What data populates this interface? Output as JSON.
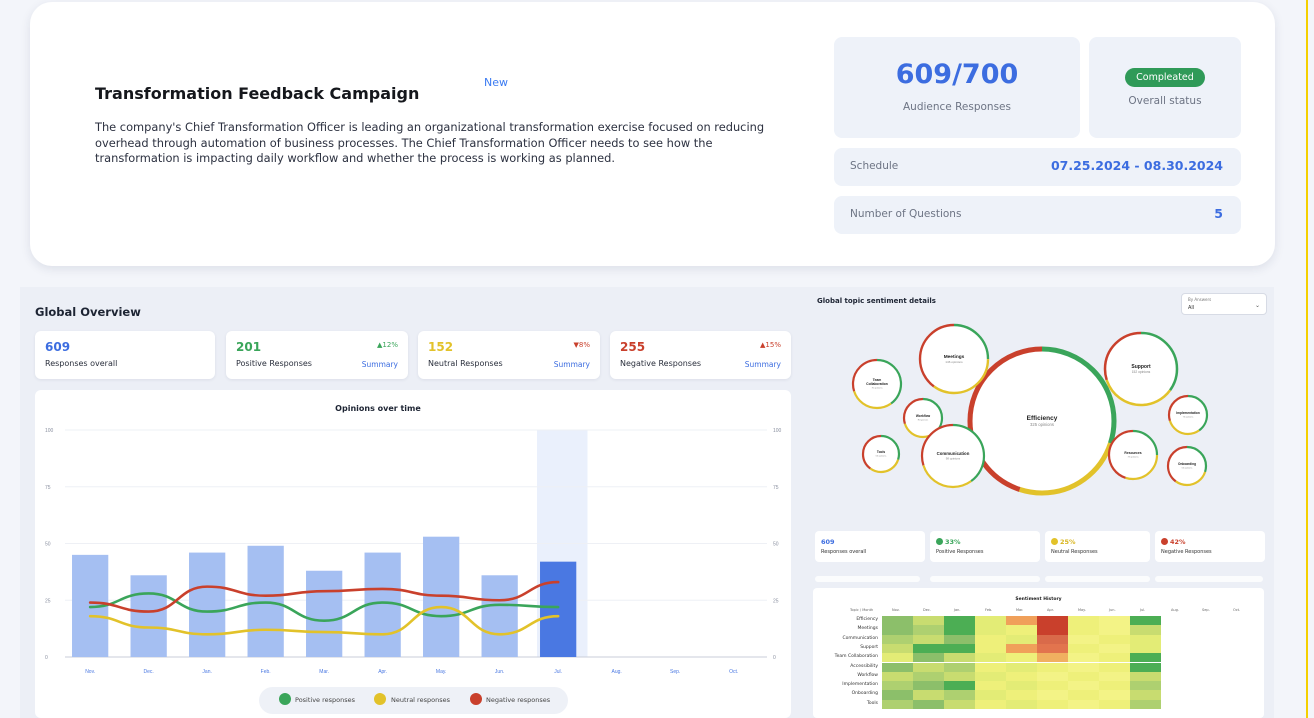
{
  "campaign": {
    "title": "Transformation Feedback Campaign",
    "new_tag": "New",
    "description": "The company's Chief Transformation Officer is leading an organizational transformation exercise focused on reducing overhead through automation of business processes. The Chief Transformation Officer needs to see how the transformation is impacting daily workflow and whether the process is working as planned."
  },
  "summary": {
    "responses": "609/700",
    "responses_label": "Audience Responses",
    "status": "Compleated",
    "status_label": "Overall status",
    "schedule_label": "Schedule",
    "schedule_value": "07.25.2024 - 08.30.2024",
    "questions_label": "Number of Questions",
    "questions_value": "5"
  },
  "overview": {
    "title": "Global Overview",
    "kpis": [
      {
        "value": "609",
        "label": "Responses overall",
        "delta": "",
        "link": "",
        "color": "#3c6de0"
      },
      {
        "value": "201",
        "label": "Positive Responses",
        "delta": "▲12%",
        "link": "Summary",
        "color": "#3aa55a"
      },
      {
        "value": "152",
        "label": "Neutral Responses",
        "delta": "▼8%",
        "link": "Summary",
        "color": "#e2c22a"
      },
      {
        "value": "255",
        "label": "Negative Responses",
        "delta": "▲15%",
        "link": "Summary",
        "color": "#c9402c"
      }
    ]
  },
  "chart_data": {
    "type": "bar",
    "title": "Opinions over time",
    "categories": [
      "Nov.",
      "Dec.",
      "Jan.",
      "Feb.",
      "Mar.",
      "Apr.",
      "May.",
      "Jun.",
      "Jul.",
      "Aug.",
      "Sep.",
      "Oct."
    ],
    "y_ticks": [
      "100",
      "75",
      "50",
      "25",
      "0"
    ],
    "ylim": [
      0,
      100
    ],
    "bars": [
      45,
      36,
      46,
      49,
      38,
      46,
      53,
      36,
      42,
      null,
      null,
      null
    ],
    "highlight_index": 8,
    "series": [
      {
        "name": "Positive responses",
        "color": "#3aa55a",
        "values": [
          22,
          28,
          20,
          24,
          16,
          24,
          18,
          23,
          22,
          null,
          null,
          null
        ]
      },
      {
        "name": "Neutral responses",
        "color": "#e2c22a",
        "values": [
          18,
          13,
          10,
          12,
          11,
          10,
          22,
          10,
          18,
          null,
          null,
          null
        ]
      },
      {
        "name": "Negative responses",
        "color": "#c9402c",
        "values": [
          24,
          20,
          31,
          27,
          29,
          30,
          27,
          25,
          33,
          null,
          null,
          null
        ]
      }
    ],
    "bar_color": "#a5bff2",
    "highlight_bar_color": "#4a78e2",
    "legend_placement": "bottom"
  },
  "topics": {
    "title": "Global topic sentiment details",
    "dropdown": {
      "caption": "By Answers",
      "value": "All"
    },
    "bubbles": [
      {
        "name": "Efficiency",
        "sub": "325 opinions"
      },
      {
        "name": "Meetings",
        "sub": "146 opinions"
      },
      {
        "name": "Support",
        "sub": "152 opinions"
      },
      {
        "name": "Team Collaboration",
        "sub": "76 opinions"
      },
      {
        "name": "Workflow",
        "sub": "Responses"
      },
      {
        "name": "Communication",
        "sub": "98 opinions"
      },
      {
        "name": "Tools",
        "sub": "55 opinions"
      },
      {
        "name": "Implementation",
        "sub": "75 opinions"
      },
      {
        "name": "Resources",
        "sub": "73 opinions"
      },
      {
        "name": "Onboarding",
        "sub": "55 opinions"
      }
    ],
    "stats": [
      {
        "value": "609",
        "label": "Responses overall",
        "color": "#3c6de0"
      },
      {
        "value": "33%",
        "label": "Positive Responses",
        "color": "#3aa55a"
      },
      {
        "value": "25%",
        "label": "Neutral Responses",
        "color": "#e2c22a"
      },
      {
        "value": "42%",
        "label": "Negative Responses",
        "color": "#c9402c"
      }
    ]
  },
  "heatmap": {
    "title": "Sentiment History",
    "corner": "Topic / Month",
    "months": [
      "Nov.",
      "Dec.",
      "Jan.",
      "Feb.",
      "Mar.",
      "Apr.",
      "May.",
      "Jun.",
      "Jul.",
      "Aug.",
      "Sep.",
      "Oct."
    ],
    "rows": [
      "Efficiency",
      "Meetings",
      "Communication",
      "Support",
      "Team Collaboration",
      "Accessibility",
      "Workflow",
      "Implementation",
      "Onboarding",
      "Tools"
    ],
    "grid": [
      [
        "#8cbf6a",
        "#c8dc70",
        "#4cae54",
        "#e3ec76",
        "#f0a05a",
        "#c9402c",
        "#eef07a",
        "#f3f386",
        "#4cae54"
      ],
      [
        "#8cbf6a",
        "#aed070",
        "#4cae54",
        "#e3ec76",
        "#eef07a",
        "#c9402c",
        "#eef07a",
        "#f3f386",
        "#c8dc70"
      ],
      [
        "#aed070",
        "#c8dc70",
        "#8cbf6a",
        "#eef07a",
        "#e3ec76",
        "#d96a4a",
        "#f3f386",
        "#eef07a",
        "#e3ec76"
      ],
      [
        "#c8dc70",
        "#4cae54",
        "#4cae54",
        "#eef07a",
        "#f0a05a",
        "#e2744e",
        "#eef07a",
        "#f3f386",
        "#e3ec76"
      ],
      [
        "#e3ec76",
        "#8cbf6a",
        "#c8dc70",
        "#e3ec76",
        "#eef07a",
        "#f0b060",
        "#f3f386",
        "#eef07a",
        "#4cae54"
      ],
      [
        "#8cbf6a",
        "#c8dc70",
        "#aed070",
        "#eef07a",
        "#e3ec76",
        "#eef07a",
        "#f3f386",
        "#eef07a",
        "#4cae54"
      ],
      [
        "#c8dc70",
        "#aed070",
        "#c8dc70",
        "#e3ec76",
        "#eef07a",
        "#f3f386",
        "#eef07a",
        "#f3f386",
        "#c8dc70"
      ],
      [
        "#aed070",
        "#8cbf6a",
        "#4cae54",
        "#eef07a",
        "#e3ec76",
        "#eef07a",
        "#f3f386",
        "#eef07a",
        "#aed070"
      ],
      [
        "#8cbf6a",
        "#c8dc70",
        "#aed070",
        "#e3ec76",
        "#eef07a",
        "#f3f386",
        "#eef07a",
        "#f3f386",
        "#c8dc70"
      ],
      [
        "#aed070",
        "#8cbf6a",
        "#c8dc70",
        "#eef07a",
        "#e3ec76",
        "#eef07a",
        "#f3f386",
        "#eef07a",
        "#aed070"
      ]
    ]
  }
}
